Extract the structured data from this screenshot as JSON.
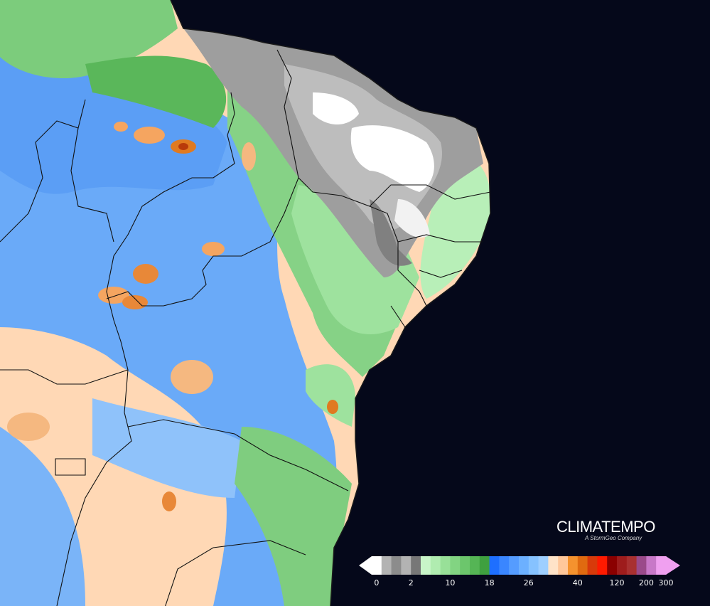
{
  "branding": {
    "name": "CLIMATEMPO",
    "tagline": "A StormGeo Company"
  },
  "map": {
    "ocean_color": "#05081a",
    "region": "Northeast Brazil (precipitation map)"
  },
  "legend": {
    "colors": [
      "#ffffff",
      "#b3b3b3",
      "#8c8c8c",
      "#b3b3b3",
      "#777777",
      "#c8f5c8",
      "#b0ecb0",
      "#98e098",
      "#82d482",
      "#6cc66c",
      "#55b555",
      "#3fa03f",
      "#1e6fff",
      "#3a86ff",
      "#559cff",
      "#6cb0ff",
      "#86c2ff",
      "#9ecfff",
      "#ffe3c8",
      "#ffc79a",
      "#f5922e",
      "#e06a10",
      "#d83a0a",
      "#ff1a00",
      "#8b0000",
      "#9e1c1c",
      "#a83030",
      "#9a4a8a",
      "#c878c8",
      "#f0a0f0"
    ],
    "tick_labels": [
      "0",
      "2",
      "10",
      "18",
      "26",
      "40",
      "120",
      "200",
      "300"
    ]
  }
}
